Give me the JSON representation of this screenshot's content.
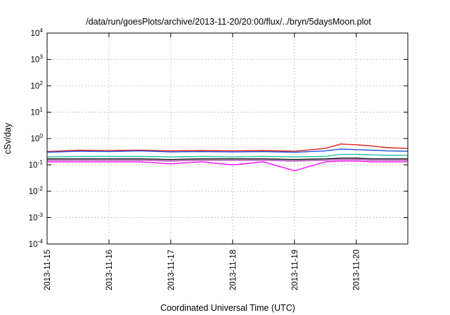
{
  "chart_data": {
    "type": "line",
    "title": "/data/run/goesPlots/archive/2013-11-20/20:00/flux/../bryn/5daysMoon.plot",
    "xlabel": "Coordinated Universal Time (UTC)",
    "ylabel": "cSv/day",
    "yscale": "log",
    "ylim": [
      0.0001,
      10000
    ],
    "xlim": [
      "2013-11-15",
      "2013-11-20 20:00"
    ],
    "x_ticks": [
      "2013-11-15",
      "2013-11-16",
      "2013-11-17",
      "2013-11-18",
      "2013-11-19",
      "2013-11-20"
    ],
    "y_ticks": [
      {
        "base": "10",
        "exp": "-4",
        "value": 0.0001
      },
      {
        "base": "10",
        "exp": "-3",
        "value": 0.001
      },
      {
        "base": "10",
        "exp": "-2",
        "value": 0.01
      },
      {
        "base": "10",
        "exp": "-1",
        "value": 0.1
      },
      {
        "base": "10",
        "exp": "0",
        "value": 1
      },
      {
        "base": "10",
        "exp": "1",
        "value": 10
      },
      {
        "base": "10",
        "exp": "2",
        "value": 100
      },
      {
        "base": "10",
        "exp": "3",
        "value": 1000
      },
      {
        "base": "10",
        "exp": "4",
        "value": 10000
      }
    ],
    "grid": true,
    "series": [
      {
        "color": "#e02020",
        "points": [
          [
            "2013-11-15 00:00",
            0.32
          ],
          [
            "2013-11-15 12:00",
            0.36
          ],
          [
            "2013-11-16 00:00",
            0.35
          ],
          [
            "2013-11-16 12:00",
            0.36
          ],
          [
            "2013-11-17 00:00",
            0.34
          ],
          [
            "2013-11-17 12:00",
            0.35
          ],
          [
            "2013-11-18 00:00",
            0.34
          ],
          [
            "2013-11-18 12:00",
            0.35
          ],
          [
            "2013-11-19 00:00",
            0.33
          ],
          [
            "2013-11-19 12:00",
            0.42
          ],
          [
            "2013-11-19 18:00",
            0.62
          ],
          [
            "2013-11-20 00:00",
            0.58
          ],
          [
            "2013-11-20 06:00",
            0.52
          ],
          [
            "2013-11-20 12:00",
            0.45
          ],
          [
            "2013-11-20 20:00",
            0.42
          ]
        ]
      },
      {
        "color": "#2050e0",
        "points": [
          [
            "2013-11-15 00:00",
            0.3
          ],
          [
            "2013-11-15 12:00",
            0.33
          ],
          [
            "2013-11-16 00:00",
            0.32
          ],
          [
            "2013-11-16 12:00",
            0.34
          ],
          [
            "2013-11-17 00:00",
            0.31
          ],
          [
            "2013-11-17 12:00",
            0.32
          ],
          [
            "2013-11-18 00:00",
            0.31
          ],
          [
            "2013-11-18 12:00",
            0.32
          ],
          [
            "2013-11-19 00:00",
            0.3
          ],
          [
            "2013-11-19 12:00",
            0.34
          ],
          [
            "2013-11-19 18:00",
            0.4
          ],
          [
            "2013-11-20 00:00",
            0.38
          ],
          [
            "2013-11-20 06:00",
            0.36
          ],
          [
            "2013-11-20 12:00",
            0.34
          ],
          [
            "2013-11-20 20:00",
            0.33
          ]
        ]
      },
      {
        "color": "#20c0a0",
        "points": [
          [
            "2013-11-15 00:00",
            0.2
          ],
          [
            "2013-11-15 12:00",
            0.21
          ],
          [
            "2013-11-16 00:00",
            0.21
          ],
          [
            "2013-11-16 12:00",
            0.21
          ],
          [
            "2013-11-17 00:00",
            0.2
          ],
          [
            "2013-11-17 12:00",
            0.21
          ],
          [
            "2013-11-18 00:00",
            0.2
          ],
          [
            "2013-11-18 12:00",
            0.21
          ],
          [
            "2013-11-19 00:00",
            0.2
          ],
          [
            "2013-11-19 12:00",
            0.21
          ],
          [
            "2013-11-19 18:00",
            0.25
          ],
          [
            "2013-11-20 00:00",
            0.25
          ],
          [
            "2013-11-20 06:00",
            0.24
          ],
          [
            "2013-11-20 12:00",
            0.23
          ],
          [
            "2013-11-20 20:00",
            0.23
          ]
        ]
      },
      {
        "color": "#000000",
        "points": [
          [
            "2013-11-15 00:00",
            0.17
          ],
          [
            "2013-11-15 12:00",
            0.17
          ],
          [
            "2013-11-16 00:00",
            0.17
          ],
          [
            "2013-11-16 12:00",
            0.17
          ],
          [
            "2013-11-17 00:00",
            0.16
          ],
          [
            "2013-11-17 12:00",
            0.17
          ],
          [
            "2013-11-18 00:00",
            0.17
          ],
          [
            "2013-11-18 12:00",
            0.17
          ],
          [
            "2013-11-19 00:00",
            0.16
          ],
          [
            "2013-11-19 12:00",
            0.17
          ],
          [
            "2013-11-19 18:00",
            0.18
          ],
          [
            "2013-11-20 00:00",
            0.18
          ],
          [
            "2013-11-20 06:00",
            0.17
          ],
          [
            "2013-11-20 12:00",
            0.17
          ],
          [
            "2013-11-20 20:00",
            0.17
          ]
        ]
      },
      {
        "color": "#b040b0",
        "points": [
          [
            "2013-11-15 00:00",
            0.15
          ],
          [
            "2013-11-15 12:00",
            0.15
          ],
          [
            "2013-11-16 00:00",
            0.15
          ],
          [
            "2013-11-16 12:00",
            0.15
          ],
          [
            "2013-11-17 00:00",
            0.14
          ],
          [
            "2013-11-17 12:00",
            0.15
          ],
          [
            "2013-11-18 00:00",
            0.15
          ],
          [
            "2013-11-18 12:00",
            0.15
          ],
          [
            "2013-11-19 00:00",
            0.14
          ],
          [
            "2013-11-19 12:00",
            0.15
          ],
          [
            "2013-11-19 18:00",
            0.16
          ],
          [
            "2013-11-20 00:00",
            0.16
          ],
          [
            "2013-11-20 06:00",
            0.15
          ],
          [
            "2013-11-20 12:00",
            0.15
          ],
          [
            "2013-11-20 20:00",
            0.15
          ]
        ]
      },
      {
        "color": "#ff10ff",
        "points": [
          [
            "2013-11-15 00:00",
            0.13
          ],
          [
            "2013-11-15 12:00",
            0.13
          ],
          [
            "2013-11-16 00:00",
            0.13
          ],
          [
            "2013-11-16 12:00",
            0.13
          ],
          [
            "2013-11-17 00:00",
            0.11
          ],
          [
            "2013-11-17 12:00",
            0.13
          ],
          [
            "2013-11-18 00:00",
            0.1
          ],
          [
            "2013-11-18 12:00",
            0.13
          ],
          [
            "2013-11-19 00:00",
            0.06
          ],
          [
            "2013-11-19 12:00",
            0.13
          ],
          [
            "2013-11-19 18:00",
            0.14
          ],
          [
            "2013-11-20 00:00",
            0.14
          ],
          [
            "2013-11-20 06:00",
            0.13
          ],
          [
            "2013-11-20 12:00",
            0.13
          ],
          [
            "2013-11-20 20:00",
            0.13
          ]
        ]
      }
    ]
  }
}
